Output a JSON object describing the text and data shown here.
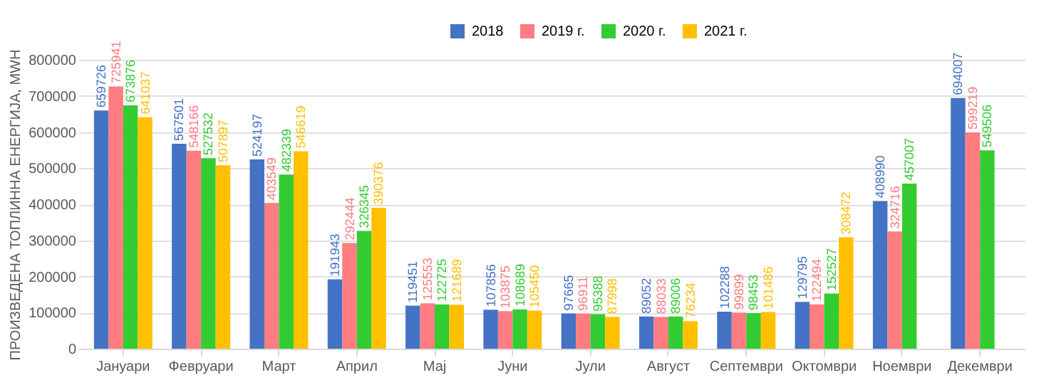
{
  "chart_data": {
    "type": "bar",
    "ylabel": "ПРОИЗВЕДЕНА ТОПЛИННА ЕНЕРГИЈА, MWH",
    "categories": [
      "Јануари",
      "Февруари",
      "Март",
      "Април",
      "Мај",
      "Јуни",
      "Јули",
      "Август",
      "Септември",
      "Октомври",
      "Ноември",
      "Декември"
    ],
    "series": [
      {
        "name": "2018",
        "color": "#4472c4",
        "values": [
          659726,
          567501,
          524197,
          191943,
          119451,
          107856,
          97665,
          89052,
          102288,
          129795,
          408990,
          694007
        ]
      },
      {
        "name": "2019 г.",
        "color": "#ff7c80",
        "values": [
          725941,
          548166,
          403549,
          292444,
          125553,
          103875,
          96911,
          88033,
          99899,
          122494,
          324716,
          599219
        ]
      },
      {
        "name": "2020 г.",
        "color": "#33cc33",
        "values": [
          673876,
          527532,
          482339,
          326345,
          122725,
          108689,
          95388,
          89006,
          98453,
          152527,
          457007,
          549506
        ]
      },
      {
        "name": "2021 г.",
        "color": "#ffc000",
        "values": [
          641037,
          507897,
          546619,
          390376,
          121689,
          105450,
          87998,
          76234,
          101486,
          308472,
          null,
          null
        ]
      }
    ],
    "ylim": [
      0,
      800000
    ],
    "yticks": [
      0,
      100000,
      200000,
      300000,
      400000,
      500000,
      600000,
      700000,
      800000
    ],
    "grid": "y",
    "legend": "top",
    "data_labels": true
  }
}
